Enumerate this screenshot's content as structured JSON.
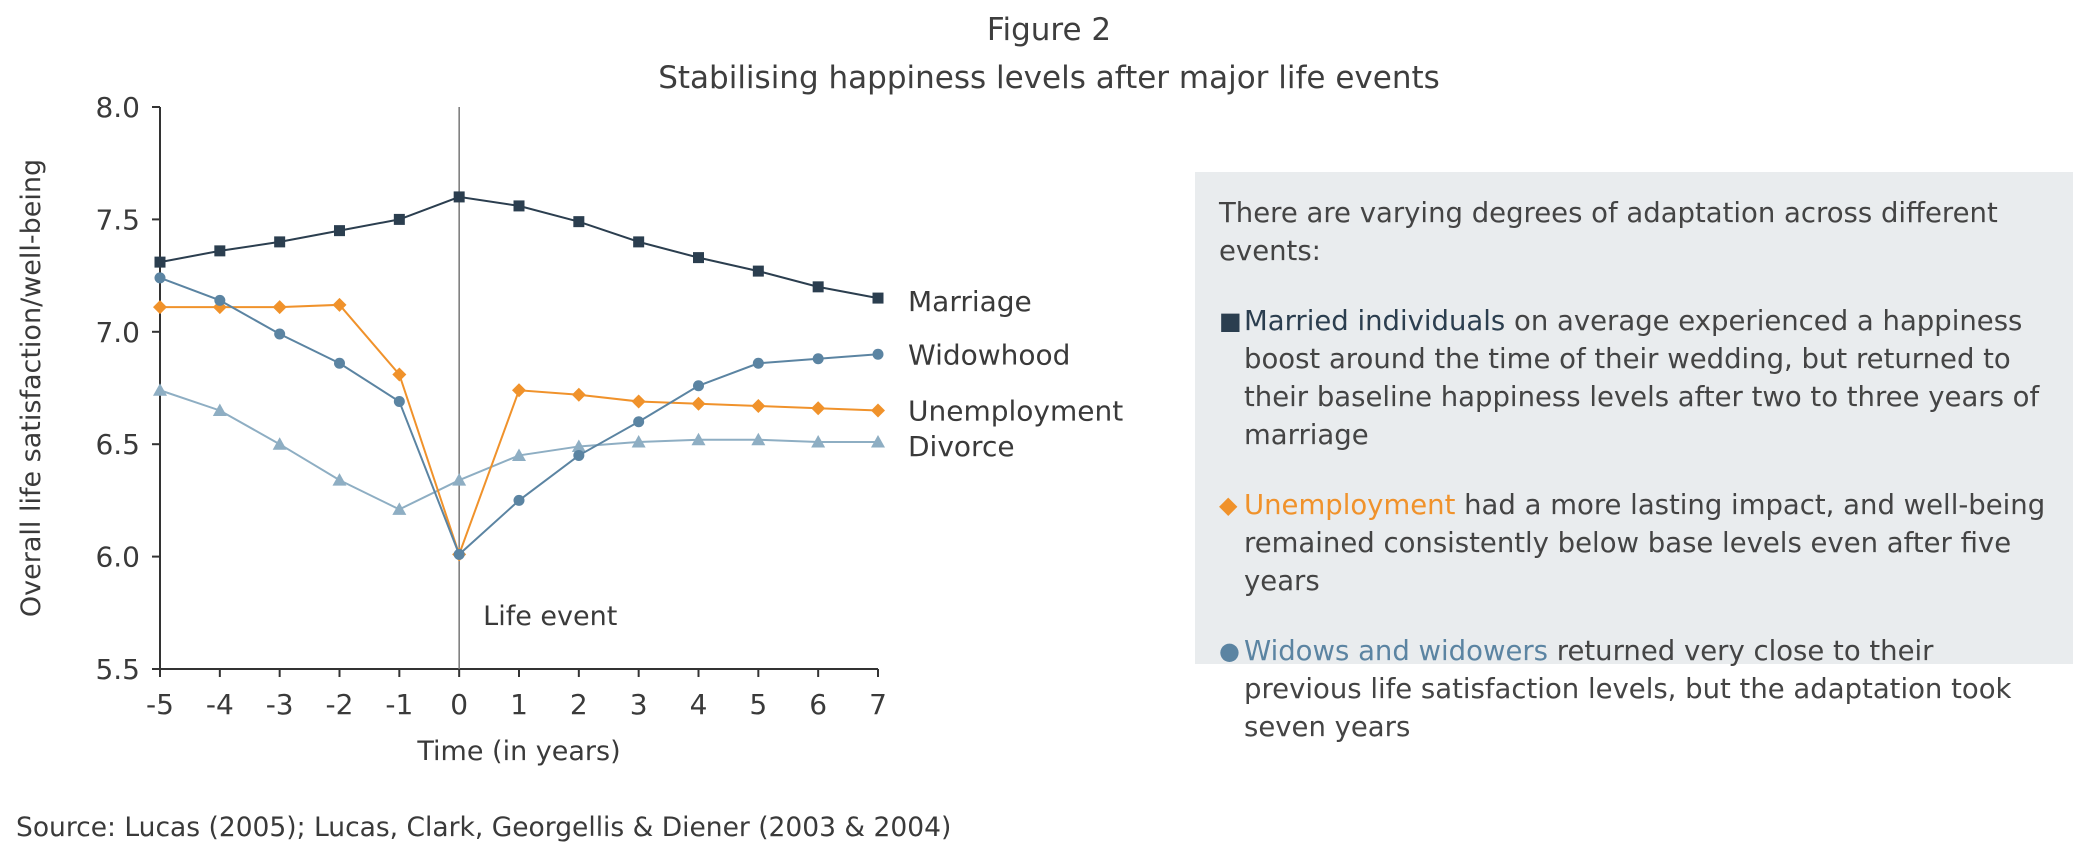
{
  "figure": {
    "label": "Figure 2",
    "title": "Stabilising happiness levels after major life events"
  },
  "chart_data": {
    "type": "line",
    "title": "Stabilising happiness levels after major life events",
    "xlabel": "Time (in years)",
    "ylabel": "Overall life satisfaction/well-being",
    "x": [
      -5,
      -4,
      -3,
      -2,
      -1,
      0,
      1,
      2,
      3,
      4,
      5,
      6,
      7
    ],
    "xticks": [
      "-5",
      "-4",
      "-3",
      "-2",
      "-1",
      "0",
      "1",
      "2",
      "3",
      "4",
      "5",
      "6",
      "7"
    ],
    "ylim": [
      5.5,
      8.0
    ],
    "yticks": [
      "5.5",
      "6.0",
      "6.5",
      "7.0",
      "7.5",
      "8.0"
    ],
    "grid": false,
    "legend": "inline labels at right end of lines",
    "annotation": "Life event",
    "event_x": 0,
    "series": [
      {
        "name": "Marriage",
        "marker": "square",
        "color": "#2b3e4f",
        "values": [
          7.31,
          7.36,
          7.4,
          7.45,
          7.5,
          7.6,
          7.56,
          7.49,
          7.4,
          7.33,
          7.27,
          7.2,
          7.15
        ]
      },
      {
        "name": "Widowhood",
        "marker": "circle",
        "color": "#5b84a2",
        "values": [
          7.24,
          7.14,
          6.99,
          6.86,
          6.69,
          6.01,
          6.25,
          6.45,
          6.6,
          6.76,
          6.86,
          6.88,
          6.9
        ]
      },
      {
        "name": "Unemployment",
        "marker": "diamond",
        "color": "#f0922b",
        "values": [
          7.11,
          7.11,
          7.11,
          7.12,
          6.81,
          6.01,
          6.74,
          6.72,
          6.69,
          6.68,
          6.67,
          6.66,
          6.65
        ]
      },
      {
        "name": "Divorce",
        "marker": "triangle",
        "color": "#8eaec3",
        "values": [
          6.74,
          6.65,
          6.5,
          6.34,
          6.21,
          6.34,
          6.45,
          6.49,
          6.51,
          6.52,
          6.52,
          6.51,
          6.51
        ]
      }
    ]
  },
  "info": {
    "intro": "There are varying degrees of adaptation across different events:",
    "items": [
      {
        "bullet": "■",
        "highlight": "Married individuals",
        "rest": " on average experienced a happiness boost around the time of their wedding, but returned to their baseline happiness levels after two to three years of marriage",
        "color": "#2b3e4f"
      },
      {
        "bullet": "◆",
        "highlight": "Unemployment",
        "rest": " had a more lasting impact, and well-being remained consistently below base levels even after five years",
        "color": "#f0922b"
      },
      {
        "bullet": "●",
        "highlight": "Widows and widowers",
        "rest": " returned very close to their previous life satisfaction levels, but the adaptation took seven years",
        "color": "#5b84a2"
      }
    ]
  },
  "source": "Source: Lucas (2005); Lucas, Clark, Georgellis & Diener (2003 & 2004)"
}
